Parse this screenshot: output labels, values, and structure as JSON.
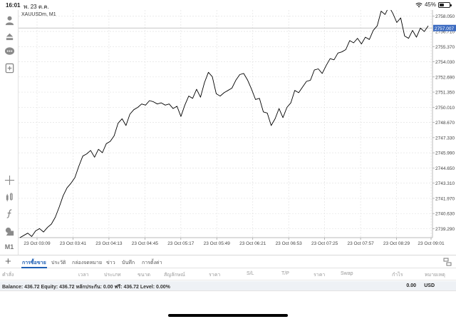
{
  "status_bar": {
    "time": "16:01",
    "date": "พ. 23 ต.ค.",
    "battery": "45%",
    "battery_level": 0.45,
    "icons": [
      "wifi-icon",
      "battery-icon"
    ]
  },
  "sidebar": {
    "icons": [
      "account-icon",
      "trade-icon",
      "chat-icon",
      "new-order-icon",
      "crosshair-icon",
      "indicators-icon",
      "function-icon",
      "objects-icon"
    ],
    "timeframe": "M1"
  },
  "chart": {
    "symbol_label": "XAUUSDm, M1",
    "current_price": "2757.007",
    "line_color": "#000000",
    "price_tag_color": "#3d6cc1",
    "chart_data": {
      "type": "line",
      "series": [
        {
          "values": [
            2738.5,
            2738.7,
            2738.9,
            2738.6,
            2739.1,
            2739.3,
            2739.0,
            2739.4,
            2739.7,
            2740.3,
            2741.2,
            2742.2,
            2742.9,
            2743.3,
            2743.8,
            2744.8,
            2745.7,
            2745.9,
            2746.2,
            2745.6,
            2746.3,
            2746.0,
            2746.8,
            2747.0,
            2747.5,
            2748.6,
            2749.0,
            2748.4,
            2749.4,
            2749.8,
            2750.0,
            2750.3,
            2750.2,
            2750.6,
            2750.5,
            2750.3,
            2750.4,
            2750.2,
            2750.3,
            2749.9,
            2750.1,
            2749.2,
            2750.2,
            2751.0,
            2750.8,
            2751.6,
            2750.9,
            2752.2,
            2753.1,
            2752.7,
            2751.2,
            2751.0,
            2751.3,
            2751.5,
            2751.7,
            2752.4,
            2752.9,
            2753.0,
            2752.4,
            2751.6,
            2750.7,
            2750.8,
            2749.6,
            2749.5,
            2748.4,
            2749.0,
            2749.9,
            2749.1,
            2750.0,
            2750.4,
            2751.5,
            2751.3,
            2751.8,
            2752.3,
            2752.4,
            2753.3,
            2753.4,
            2753.0,
            2753.7,
            2754.3,
            2754.2,
            2754.8,
            2754.9,
            2755.1,
            2755.9,
            2755.7,
            2756.1,
            2755.6,
            2756.2,
            2756.0,
            2756.8,
            2757.2,
            2758.5,
            2758.2,
            2758.9,
            2758.3,
            2757.5,
            2757.9,
            2756.3,
            2756.1,
            2756.8,
            2756.2,
            2757.0,
            2756.7,
            2757.2
          ]
        }
      ],
      "x_labels": [
        "23 Oct 03:09",
        "23 Oct 03:41",
        "23 Oct 04:13",
        "23 Oct 04:45",
        "23 Oct 05:17",
        "23 Oct 05:49",
        "23 Oct 06:21",
        "23 Oct 06:53",
        "23 Oct 07:25",
        "23 Oct 07:57",
        "23 Oct 08:29",
        "23 Oct 09:01"
      ],
      "y_ticks": [
        "2758.050",
        "2756.710",
        "2755.370",
        "2754.030",
        "2752.690",
        "2751.350",
        "2750.010",
        "2748.670",
        "2747.330",
        "2745.990",
        "2744.650",
        "2743.310",
        "2741.970",
        "2740.630",
        "2739.290"
      ],
      "ylim": [
        2738.5,
        2758.6
      ],
      "grid": true,
      "current_price_line": 2757.007
    }
  },
  "bottom_panel": {
    "tabs": [
      "การซื้อขาย",
      "ประวัติ",
      "กล่องจดหมาย",
      "ข่าว",
      "บันทึก",
      "การตั้งค่า"
    ],
    "active_tab": 0,
    "columns": [
      "คำสั่ง",
      "เวลา",
      "ประเภท",
      "ขนาด",
      "สัญลักษณ์",
      "ราคา",
      "S/L",
      "T/P",
      "ราคา",
      "Swap",
      "กำไร",
      "หมายเหตุ"
    ],
    "balance_text": "Balance: 436.72 Equity: 436.72 หลักประกัน: 0.00 ฟรี: 436.72 Level: 0.00%",
    "profit": "0.00",
    "currency": "USD"
  }
}
